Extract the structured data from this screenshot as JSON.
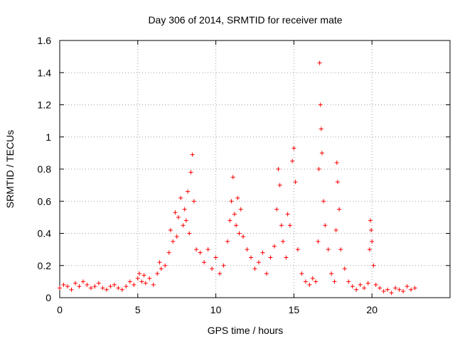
{
  "chart_data": {
    "type": "scatter",
    "title": "Day 306 of 2014, SRMTID for receiver mate",
    "xlabel": "GPS time / hours",
    "ylabel": "SRMTID / TECUs",
    "xlim": [
      0,
      25
    ],
    "ylim": [
      0,
      1.6
    ],
    "xticks": [
      0,
      5,
      10,
      15,
      20
    ],
    "xtick_labels": [
      "0",
      "5",
      "10",
      "15",
      "20"
    ],
    "yticks": [
      0,
      0.2,
      0.4,
      0.6,
      0.8,
      1,
      1.2,
      1.4,
      1.6
    ],
    "ytick_labels": [
      "0",
      "0.2",
      "0.4",
      "0.6",
      "0.8",
      "1",
      "1.2",
      "1.4",
      "1.6"
    ],
    "grid": true,
    "marker": "plus",
    "series": [
      {
        "name": "SRMTID",
        "color": "#ff0000",
        "x": [
          0.0,
          0.25,
          0.5,
          0.75,
          1.0,
          1.25,
          1.5,
          1.75,
          2.0,
          2.25,
          2.5,
          2.75,
          3.0,
          3.25,
          3.5,
          3.75,
          4.0,
          4.25,
          4.5,
          4.75,
          5.0,
          5.1,
          5.25,
          5.4,
          5.5,
          5.75,
          6.0,
          6.25,
          6.4,
          6.5,
          6.75,
          7.0,
          7.1,
          7.25,
          7.4,
          7.5,
          7.6,
          7.75,
          7.9,
          8.0,
          8.1,
          8.2,
          8.3,
          8.4,
          8.5,
          8.6,
          8.75,
          9.0,
          9.25,
          9.5,
          9.75,
          10.0,
          10.25,
          10.5,
          10.75,
          10.9,
          11.0,
          11.1,
          11.2,
          11.3,
          11.4,
          11.5,
          11.6,
          11.75,
          12.0,
          12.25,
          12.5,
          12.75,
          13.0,
          13.25,
          13.5,
          13.75,
          13.9,
          14.0,
          14.1,
          14.2,
          14.3,
          14.5,
          14.6,
          14.75,
          14.9,
          15.0,
          15.1,
          15.25,
          15.5,
          15.75,
          16.0,
          16.2,
          16.4,
          16.55,
          16.6,
          16.65,
          16.7,
          16.75,
          16.8,
          16.9,
          17.0,
          17.2,
          17.4,
          17.6,
          17.7,
          17.75,
          17.8,
          17.9,
          18.0,
          18.25,
          18.5,
          18.75,
          19.0,
          19.25,
          19.5,
          19.75,
          19.85,
          19.9,
          19.95,
          20.0,
          20.1,
          20.25,
          20.5,
          20.75,
          21.0,
          21.25,
          21.5,
          21.75,
          22.0,
          22.25,
          22.5,
          22.75
        ],
        "y": [
          0.06,
          0.08,
          0.07,
          0.05,
          0.09,
          0.07,
          0.1,
          0.08,
          0.06,
          0.07,
          0.09,
          0.06,
          0.05,
          0.07,
          0.08,
          0.06,
          0.05,
          0.07,
          0.1,
          0.08,
          0.12,
          0.15,
          0.1,
          0.14,
          0.09,
          0.12,
          0.08,
          0.15,
          0.22,
          0.18,
          0.2,
          0.28,
          0.42,
          0.35,
          0.53,
          0.38,
          0.5,
          0.62,
          0.45,
          0.55,
          0.48,
          0.66,
          0.4,
          0.78,
          0.89,
          0.6,
          0.3,
          0.28,
          0.22,
          0.3,
          0.18,
          0.25,
          0.15,
          0.2,
          0.35,
          0.48,
          0.6,
          0.75,
          0.52,
          0.45,
          0.62,
          0.4,
          0.55,
          0.38,
          0.3,
          0.25,
          0.18,
          0.22,
          0.28,
          0.15,
          0.25,
          0.32,
          0.55,
          0.8,
          0.7,
          0.45,
          0.35,
          0.25,
          0.52,
          0.45,
          0.85,
          0.93,
          0.72,
          0.3,
          0.15,
          0.1,
          0.08,
          0.12,
          0.1,
          0.35,
          0.8,
          1.46,
          1.2,
          1.05,
          0.9,
          0.6,
          0.45,
          0.3,
          0.15,
          0.1,
          0.42,
          0.84,
          0.72,
          0.55,
          0.3,
          0.18,
          0.1,
          0.07,
          0.05,
          0.08,
          0.06,
          0.09,
          0.3,
          0.48,
          0.42,
          0.35,
          0.2,
          0.08,
          0.06,
          0.04,
          0.05,
          0.03,
          0.06,
          0.05,
          0.04,
          0.07,
          0.05,
          0.06
        ]
      }
    ]
  }
}
